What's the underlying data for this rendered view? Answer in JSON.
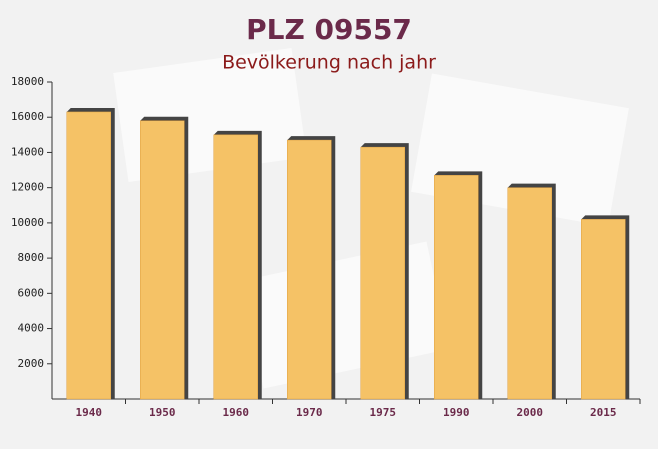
{
  "chart_data": {
    "type": "bar",
    "title": "PLZ 09557",
    "subtitle": "Bevölkerung nach jahr",
    "categories": [
      "1940",
      "1950",
      "1960",
      "1970",
      "1975",
      "1990",
      "2000",
      "2015"
    ],
    "values": [
      16300,
      15800,
      15000,
      14700,
      14300,
      12700,
      12000,
      10200
    ],
    "color": "#f5c266",
    "ylim": [
      0,
      18000
    ],
    "yticks": [
      2000,
      4000,
      6000,
      8000,
      10000,
      12000,
      14000,
      16000,
      18000
    ]
  }
}
